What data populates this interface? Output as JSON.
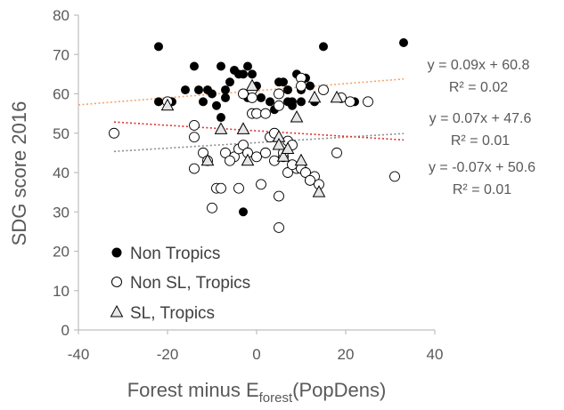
{
  "chart_data": {
    "type": "scatter",
    "xlabel_main": "Forest minus E",
    "xlabel_sub": "forest",
    "xlabel_tail": "(PopDens)",
    "ylabel": "SDG score 2016",
    "xlim": [
      -40,
      40
    ],
    "ylim": [
      0,
      80
    ],
    "xticks": [
      "-40",
      "-20",
      "0",
      "20",
      "40"
    ],
    "yticks": [
      "0",
      "10",
      "20",
      "30",
      "40",
      "50",
      "60",
      "70",
      "80"
    ],
    "grid": false,
    "legend_position": "bottom-left",
    "series": [
      {
        "name": "Non Tropics",
        "marker": "filled-circle",
        "color": "#000000",
        "x": [
          -22,
          -19,
          -16,
          -14,
          -12,
          -11,
          -10,
          -9,
          -8,
          -7,
          -6,
          -5,
          -4,
          -3,
          -2,
          -1,
          0,
          3,
          4,
          5,
          6,
          7,
          8,
          9,
          10,
          11,
          12,
          13,
          -22,
          -13,
          -8,
          -7,
          -2,
          1,
          7,
          8,
          10,
          15,
          22,
          33,
          -3
        ],
        "y": [
          72,
          58,
          61,
          67,
          58,
          61,
          60,
          57,
          67,
          61,
          63,
          66,
          65,
          65,
          67,
          65,
          62,
          58,
          56,
          63,
          63,
          61,
          57,
          65,
          61,
          64,
          62,
          58,
          58,
          61,
          54,
          59,
          59,
          59,
          58,
          58,
          58,
          72,
          58,
          73,
          30
        ]
      },
      {
        "name": "Non SL, Tropics",
        "marker": "open-circle",
        "color": "#000000",
        "x": [
          -32,
          -20,
          -14,
          -14,
          -14,
          -12,
          -11,
          -10,
          -9,
          -8,
          -7,
          -5,
          -4,
          -4,
          -3,
          -3,
          -2,
          -1,
          -1,
          0,
          0,
          1,
          2,
          3,
          4,
          5,
          5,
          5,
          6,
          6,
          7,
          7,
          8,
          9,
          10,
          10,
          10,
          11,
          12,
          13,
          14,
          15,
          18,
          19,
          21,
          25,
          31,
          4,
          8,
          5,
          -1,
          12,
          -6,
          2
        ],
        "y": [
          50,
          58,
          41,
          49,
          52,
          45,
          43,
          31,
          36,
          36,
          45,
          44,
          46,
          36,
          47,
          60,
          45,
          55,
          61,
          44,
          55,
          37,
          45,
          49,
          43,
          57,
          34,
          26,
          44,
          45,
          40,
          48,
          47,
          41,
          64,
          62,
          41,
          40,
          38,
          39,
          37,
          61,
          45,
          59,
          58,
          58,
          39,
          50,
          42,
          60,
          59,
          38,
          43,
          55
        ]
      },
      {
        "name": "SL, Tropics",
        "marker": "open-triangle",
        "color": "#000000",
        "x": [
          -20,
          -11,
          -8,
          -3,
          -2,
          -1,
          5,
          5,
          6,
          7,
          9,
          10,
          13,
          14,
          18
        ],
        "y": [
          57,
          43,
          51,
          51,
          43,
          62,
          49,
          47,
          44,
          46,
          54,
          43,
          59,
          35,
          59
        ]
      }
    ],
    "trendlines": [
      {
        "label": "y = 0.09x + 60.8",
        "r2": "R² = 0.02",
        "color": "#f4a36a",
        "slope": 0.09,
        "intercept": 60.8,
        "x_range": [
          -40,
          33
        ]
      },
      {
        "label": "y = 0.07x + 47.6",
        "r2": "R² = 0.01",
        "color": "#8c8c8c",
        "slope": 0.07,
        "intercept": 47.6,
        "x_range": [
          -32,
          33
        ]
      },
      {
        "label": "y = -0.07x + 50.6",
        "r2": "R² = 0.01",
        "color": "#d9302c",
        "slope": -0.07,
        "intercept": 50.6,
        "x_range": [
          -32,
          33
        ]
      }
    ]
  }
}
